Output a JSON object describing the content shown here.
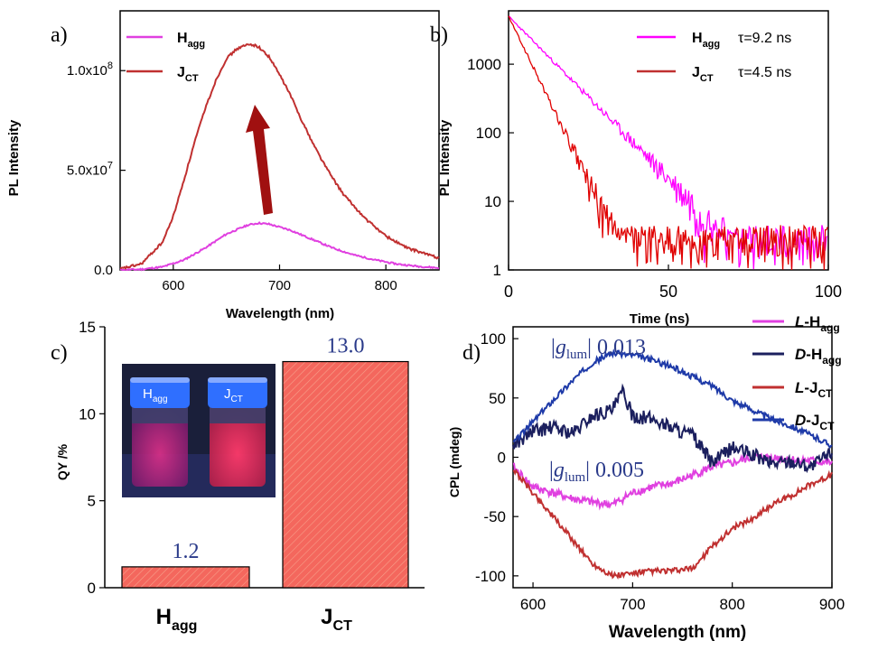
{
  "chart_data": [
    {
      "panel": "a)",
      "type": "line",
      "xlabel": "Wavelength (nm)",
      "ylabel": "PL Intensity",
      "xlim": [
        550,
        850
      ],
      "ylim": [
        0,
        130000000
      ],
      "xticks": [
        600,
        700,
        800
      ],
      "yticks": [
        0,
        50000000,
        100000000
      ],
      "ytick_labels": [
        "0.0",
        "5.0x10",
        "1.0x10"
      ],
      "ytick_exponents": [
        "",
        "7",
        "8"
      ],
      "legend_position": "top-left",
      "series": [
        {
          "name": "H",
          "subscript": "agg",
          "color": "#e040e0",
          "x": [
            550,
            570,
            590,
            610,
            630,
            650,
            670,
            680,
            690,
            710,
            730,
            750,
            770,
            790,
            810,
            830,
            850
          ],
          "y": [
            0,
            300000,
            1500000,
            5000000,
            11000000,
            18000000,
            22500000,
            23500000,
            23000000,
            20000000,
            15500000,
            11000000,
            7500000,
            5000000,
            3000000,
            1800000,
            1000000
          ]
        },
        {
          "name": "J",
          "subscript": "CT",
          "color": "#c03030",
          "x": [
            550,
            570,
            590,
            600,
            610,
            620,
            630,
            640,
            650,
            660,
            670,
            675,
            680,
            690,
            700,
            710,
            720,
            730,
            740,
            750,
            760,
            780,
            800,
            820,
            850
          ],
          "y": [
            500000,
            3000000,
            14000000,
            27000000,
            45000000,
            64000000,
            81000000,
            95000000,
            106000000,
            111000000,
            113000000,
            113000000,
            112000000,
            107000000,
            98000000,
            88000000,
            76000000,
            65000000,
            55000000,
            46000000,
            38000000,
            26000000,
            17000000,
            11000000,
            6000000
          ]
        }
      ]
    },
    {
      "panel": "b)",
      "type": "line",
      "yscale": "log",
      "xlabel": "Time (ns)",
      "ylabel": "PL Intensity",
      "xlim": [
        0,
        100
      ],
      "ylim": [
        1,
        6000
      ],
      "xticks": [
        0,
        50,
        100
      ],
      "yticks": [
        1,
        10,
        100,
        1000
      ],
      "legend_position": "top-right",
      "series": [
        {
          "name": "H",
          "subscript": "agg",
          "color": "#ff00ff",
          "annotation": "τ=9.2 ns",
          "lifetime_ns": 9.2,
          "y0": 5000,
          "floor": 2.5
        },
        {
          "name": "J",
          "subscript": "CT",
          "color": "#e00000",
          "annotation": "τ=4.5 ns",
          "lifetime_ns": 4.5,
          "y0": 5000,
          "floor": 2.5
        }
      ]
    },
    {
      "panel": "c)",
      "type": "bar",
      "ylabel": "QY /%",
      "ylim": [
        0,
        15
      ],
      "yticks": [
        0,
        5,
        10,
        15
      ],
      "bar_color": "#f4675d",
      "categories": [
        {
          "main": "H",
          "sub": "agg"
        },
        {
          "main": "J",
          "sub": "CT"
        }
      ],
      "values": [
        1.2,
        13.0
      ],
      "value_labels": [
        "1.2",
        "13.0"
      ],
      "inset_caps": [
        {
          "main": "H",
          "sub": "agg"
        },
        {
          "main": "J",
          "sub": "CT"
        }
      ]
    },
    {
      "panel": "d)",
      "type": "line",
      "xlabel": "Wavelength (nm)",
      "ylabel": "CPL (mdeg)",
      "xlim": [
        580,
        900
      ],
      "ylim": [
        -110,
        110
      ],
      "xticks": [
        600,
        700,
        800,
        900
      ],
      "yticks": [
        -100,
        -50,
        0,
        50,
        100
      ],
      "legend_position": "outside-right",
      "annotations": [
        {
          "g": "g",
          "sub": "lum",
          "value": "0.013"
        },
        {
          "g": "g",
          "sub": "lum",
          "value": "0.005"
        }
      ],
      "series": [
        {
          "name": "L-H",
          "italic": "L",
          "main": "-H",
          "subscript": "agg",
          "color": "#e040e0",
          "x": [
            580,
            600,
            620,
            640,
            660,
            680,
            700,
            720,
            740,
            760,
            780,
            800,
            820,
            840,
            860,
            880,
            900
          ],
          "y": [
            -8,
            -25,
            -30,
            -35,
            -38,
            -40,
            -30,
            -25,
            -22,
            -15,
            -8,
            -5,
            0,
            0,
            -2,
            -3,
            -5
          ]
        },
        {
          "name": "D-H",
          "italic": "D",
          "main": "-H",
          "subscript": "agg",
          "color": "#1b1f5e",
          "x": [
            580,
            600,
            620,
            640,
            660,
            680,
            690,
            700,
            720,
            740,
            760,
            780,
            800,
            820,
            840,
            860,
            880,
            900
          ],
          "y": [
            10,
            22,
            25,
            20,
            35,
            40,
            55,
            35,
            32,
            25,
            18,
            -5,
            8,
            2,
            -5,
            -3,
            -8,
            5
          ]
        },
        {
          "name": "L-J",
          "italic": "L",
          "main": "-J",
          "subscript": "CT",
          "color": "#c03030",
          "x": [
            580,
            600,
            620,
            640,
            660,
            680,
            700,
            720,
            740,
            760,
            780,
            800,
            820,
            840,
            860,
            880,
            900
          ],
          "y": [
            -10,
            -30,
            -50,
            -70,
            -90,
            -100,
            -98,
            -96,
            -96,
            -94,
            -75,
            -60,
            -52,
            -40,
            -32,
            -22,
            -15
          ]
        },
        {
          "name": "D-J",
          "italic": "D",
          "main": "-J",
          "subscript": "CT",
          "color": "#1e3aa8",
          "x": [
            580,
            600,
            620,
            640,
            660,
            680,
            700,
            720,
            740,
            760,
            780,
            800,
            820,
            840,
            860,
            880,
            900
          ],
          "y": [
            12,
            30,
            48,
            65,
            80,
            88,
            86,
            82,
            76,
            68,
            60,
            48,
            40,
            32,
            26,
            18,
            10
          ]
        }
      ]
    }
  ]
}
